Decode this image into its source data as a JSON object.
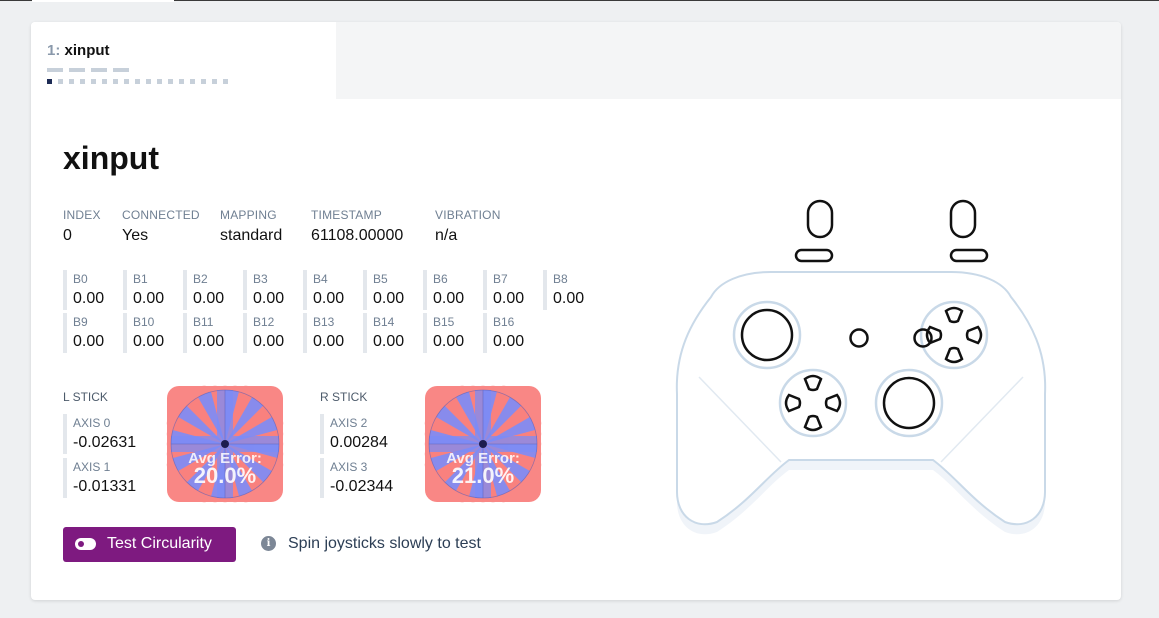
{
  "tab": {
    "index": "1:",
    "name": "xinput"
  },
  "controller": {
    "title": "xinput",
    "meta": [
      {
        "label": "INDEX",
        "value": "0"
      },
      {
        "label": "CONNECTED",
        "value": "Yes"
      },
      {
        "label": "MAPPING",
        "value": "standard"
      },
      {
        "label": "TIMESTAMP",
        "value": "61108.00000"
      },
      {
        "label": "VIBRATION",
        "value": "n/a"
      }
    ],
    "buttons": [
      {
        "label": "B0",
        "value": "0.00"
      },
      {
        "label": "B1",
        "value": "0.00"
      },
      {
        "label": "B2",
        "value": "0.00"
      },
      {
        "label": "B3",
        "value": "0.00"
      },
      {
        "label": "B4",
        "value": "0.00"
      },
      {
        "label": "B5",
        "value": "0.00"
      },
      {
        "label": "B6",
        "value": "0.00"
      },
      {
        "label": "B7",
        "value": "0.00"
      },
      {
        "label": "B8",
        "value": "0.00"
      },
      {
        "label": "B9",
        "value": "0.00"
      },
      {
        "label": "B10",
        "value": "0.00"
      },
      {
        "label": "B11",
        "value": "0.00"
      },
      {
        "label": "B12",
        "value": "0.00"
      },
      {
        "label": "B13",
        "value": "0.00"
      },
      {
        "label": "B14",
        "value": "0.00"
      },
      {
        "label": "B15",
        "value": "0.00"
      },
      {
        "label": "B16",
        "value": "0.00"
      }
    ],
    "sticks": [
      {
        "label": "L STICK",
        "axes": [
          {
            "label": "AXIS 0",
            "value": "-0.02631"
          },
          {
            "label": "AXIS 1",
            "value": "-0.01331"
          }
        ],
        "error_label": "Avg Error:",
        "error_value": "20.0%"
      },
      {
        "label": "R STICK",
        "axes": [
          {
            "label": "AXIS 2",
            "value": "0.00284"
          },
          {
            "label": "AXIS 3",
            "value": "-0.02344"
          }
        ],
        "error_label": "Avg Error:",
        "error_value": "21.0%"
      }
    ]
  },
  "actions": {
    "test_label": "Test Circularity",
    "hint": "Spin joysticks slowly to test",
    "info_icon": "i"
  },
  "colors": {
    "accent": "#7e1a80",
    "error_fill": "#f97b78",
    "ok_fill": "#7b8cf7",
    "controller_outline": "#c9d9e8"
  },
  "icons": [
    "toggle-icon",
    "info-icon",
    "gamepad-illustration"
  ]
}
